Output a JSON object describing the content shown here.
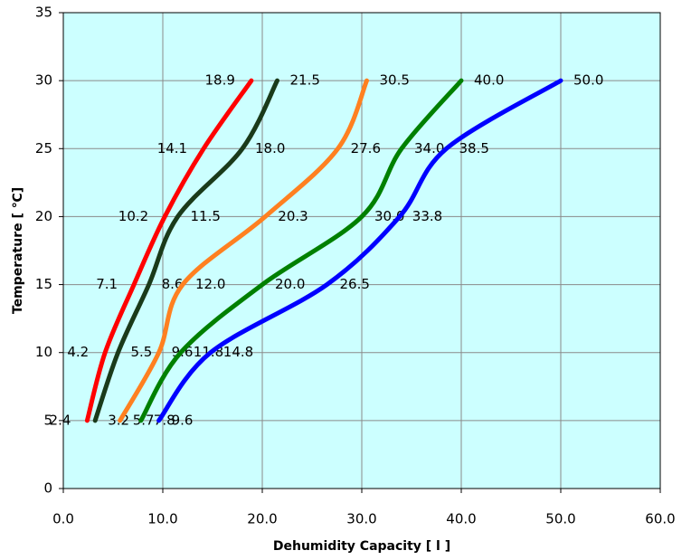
{
  "chart_data": {
    "type": "line",
    "x_label": "Dehumidity Capacity [ l ]",
    "y_label": "Temperature [ ℃]",
    "xlim": [
      0,
      60
    ],
    "xticks": [
      {
        "value": 0,
        "label": "0.0"
      },
      {
        "value": 10,
        "label": "10.0"
      },
      {
        "value": 20,
        "label": "20.0"
      },
      {
        "value": 30,
        "label": "30.0"
      },
      {
        "value": 40,
        "label": "40.0"
      },
      {
        "value": 50,
        "label": "50.0"
      },
      {
        "value": 60,
        "label": "60.0"
      }
    ],
    "ylim": [
      0,
      35
    ],
    "yticks": [
      0,
      5,
      10,
      15,
      20,
      25,
      30,
      35
    ],
    "grid": true,
    "plot_background": "#ccffff",
    "series": [
      {
        "color": "#ff0000",
        "x": [
          2.4,
          4.2,
          7.1,
          10.2,
          14.1,
          18.9
        ],
        "x_labels": [
          "2.4",
          "4.2",
          "7.1",
          "10.2",
          "14.1",
          "18.9"
        ],
        "values": [
          5,
          10,
          15,
          20,
          25,
          30
        ]
      },
      {
        "color": "#1a3a1a",
        "x": [
          3.2,
          5.5,
          8.6,
          11.5,
          18.0,
          21.5
        ],
        "x_labels": [
          "3.2",
          "5.5",
          "8.6",
          "11.5",
          "18.0",
          "21.5"
        ],
        "values": [
          5,
          10,
          15,
          20,
          25,
          30
        ]
      },
      {
        "color": "#ff8020",
        "x": [
          5.7,
          9.6,
          12.0,
          20.3,
          27.6,
          30.5
        ],
        "x_labels": [
          "5.7",
          "9.6",
          "12.0",
          "20.3",
          "27.6",
          "30.5"
        ],
        "values": [
          5,
          10,
          15,
          20,
          25,
          30
        ]
      },
      {
        "color": "#008000",
        "x": [
          7.8,
          11.8,
          20.0,
          30.0,
          34.0,
          40.0
        ],
        "x_labels": [
          "7.8",
          "11.8",
          "20.0",
          "30.0",
          "34.0",
          "40.0"
        ],
        "values": [
          5,
          10,
          15,
          20,
          25,
          30
        ]
      },
      {
        "color": "#0000ff",
        "x": [
          9.6,
          14.8,
          26.5,
          33.8,
          38.5,
          50.0
        ],
        "x_labels": [
          "9.6",
          "14.8",
          "26.5",
          "33.8",
          "38.5",
          "50.0"
        ],
        "values": [
          5,
          10,
          15,
          20,
          25,
          30
        ]
      }
    ]
  }
}
